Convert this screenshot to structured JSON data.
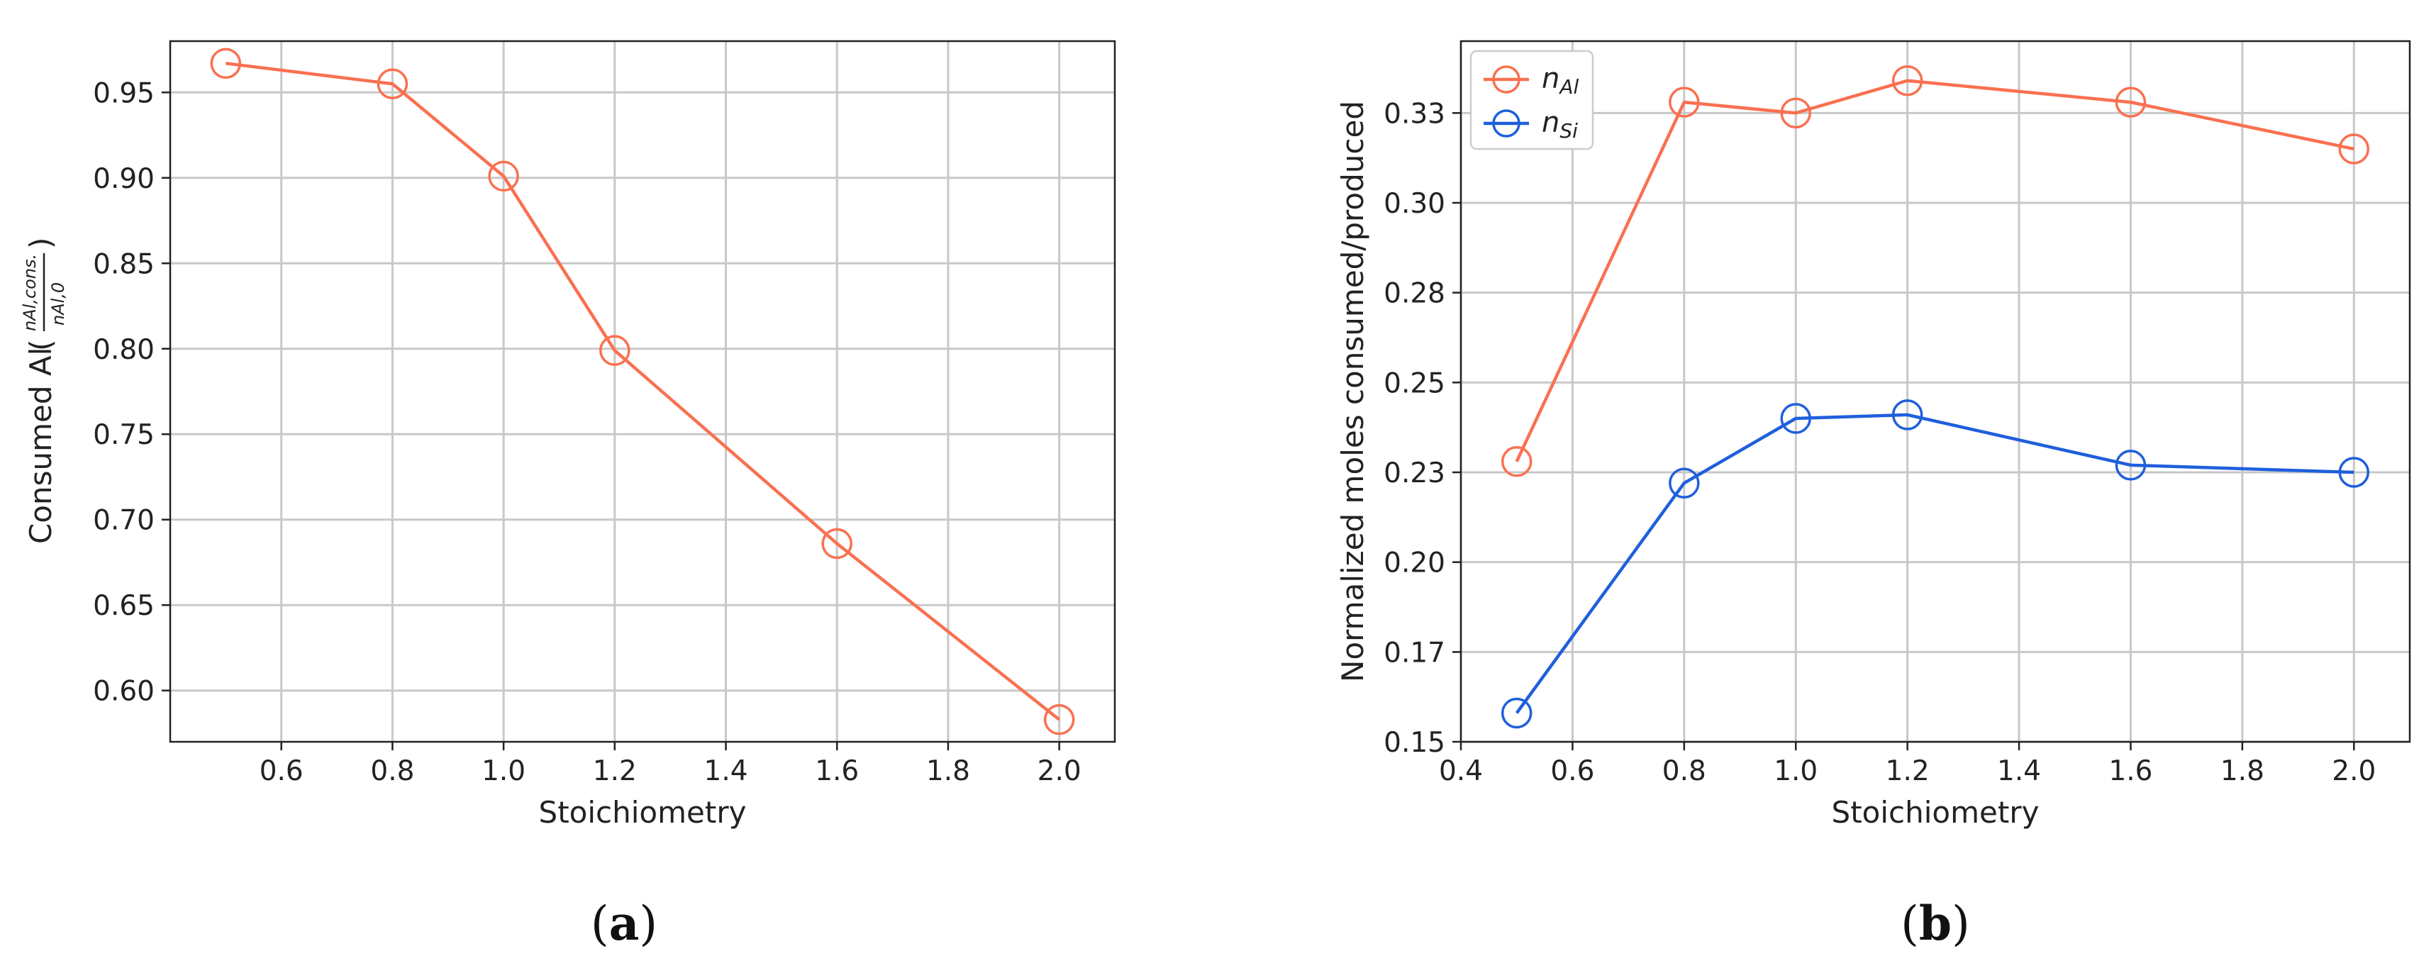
{
  "chart_data": [
    {
      "type": "line",
      "panel_label": "(a)",
      "xlabel": "Stoichiometry",
      "ylabel": "Consumed Al",
      "ylabel_fraction": {
        "numerator": "n_{Al,cons.}",
        "denominator": "n_{Al,0}"
      },
      "xlim": [
        0.4,
        2.1
      ],
      "ylim": [
        0.57,
        0.98
      ],
      "xticks": [
        0.6,
        0.8,
        1.0,
        1.2,
        1.4,
        1.6,
        1.8,
        2.0
      ],
      "xtick_labels": [
        "0.6",
        "0.8",
        "1.0",
        "1.2",
        "1.4",
        "1.6",
        "1.8",
        "2.0"
      ],
      "yticks": [
        0.6,
        0.65,
        0.7,
        0.75,
        0.8,
        0.85,
        0.9,
        0.95
      ],
      "ytick_labels": [
        "0.60",
        "0.65",
        "0.70",
        "0.75",
        "0.80",
        "0.85",
        "0.90",
        "0.95"
      ],
      "grid": true,
      "series": [
        {
          "x": [
            0.5,
            0.8,
            1.0,
            1.2,
            1.6,
            2.0
          ],
          "y": [
            0.967,
            0.955,
            0.901,
            0.799,
            0.686,
            0.583
          ],
          "color": "#fa7050",
          "marker": "open-circle"
        }
      ]
    },
    {
      "type": "line",
      "panel_label": "(b)",
      "xlabel": "Stoichiometry",
      "ylabel": "Normalized moles consumed/produced",
      "xlim": [
        0.4,
        2.1
      ],
      "ylim": [
        0.15,
        0.345
      ],
      "xticks": [
        0.4,
        0.6,
        0.8,
        1.0,
        1.2,
        1.4,
        1.6,
        1.8,
        2.0
      ],
      "xtick_labels": [
        "0.4",
        "0.6",
        "0.8",
        "1.0",
        "1.2",
        "1.4",
        "1.6",
        "1.8",
        "2.0"
      ],
      "yticks": [
        0.15,
        0.175,
        0.2,
        0.225,
        0.25,
        0.275,
        0.3,
        0.325
      ],
      "ytick_labels": [
        "0.15",
        "0.17",
        "0.20",
        "0.23",
        "0.25",
        "0.28",
        "0.30",
        "0.33"
      ],
      "grid": true,
      "legend_position": "top-left",
      "series": [
        {
          "name": "n_Al",
          "legend_main": "n",
          "legend_sub": "Al",
          "x": [
            0.5,
            0.8,
            1.0,
            1.2,
            1.6,
            2.0
          ],
          "y": [
            0.228,
            0.328,
            0.325,
            0.334,
            0.328,
            0.315
          ],
          "color": "#fa7050",
          "marker": "open-circle"
        },
        {
          "name": "n_Si",
          "legend_main": "n",
          "legend_sub": "Si",
          "x": [
            0.5,
            0.8,
            1.0,
            1.2,
            1.6,
            2.0
          ],
          "y": [
            0.158,
            0.222,
            0.24,
            0.241,
            0.227,
            0.225
          ],
          "color": "#1f5fdc",
          "marker": "open-circle"
        }
      ]
    }
  ]
}
